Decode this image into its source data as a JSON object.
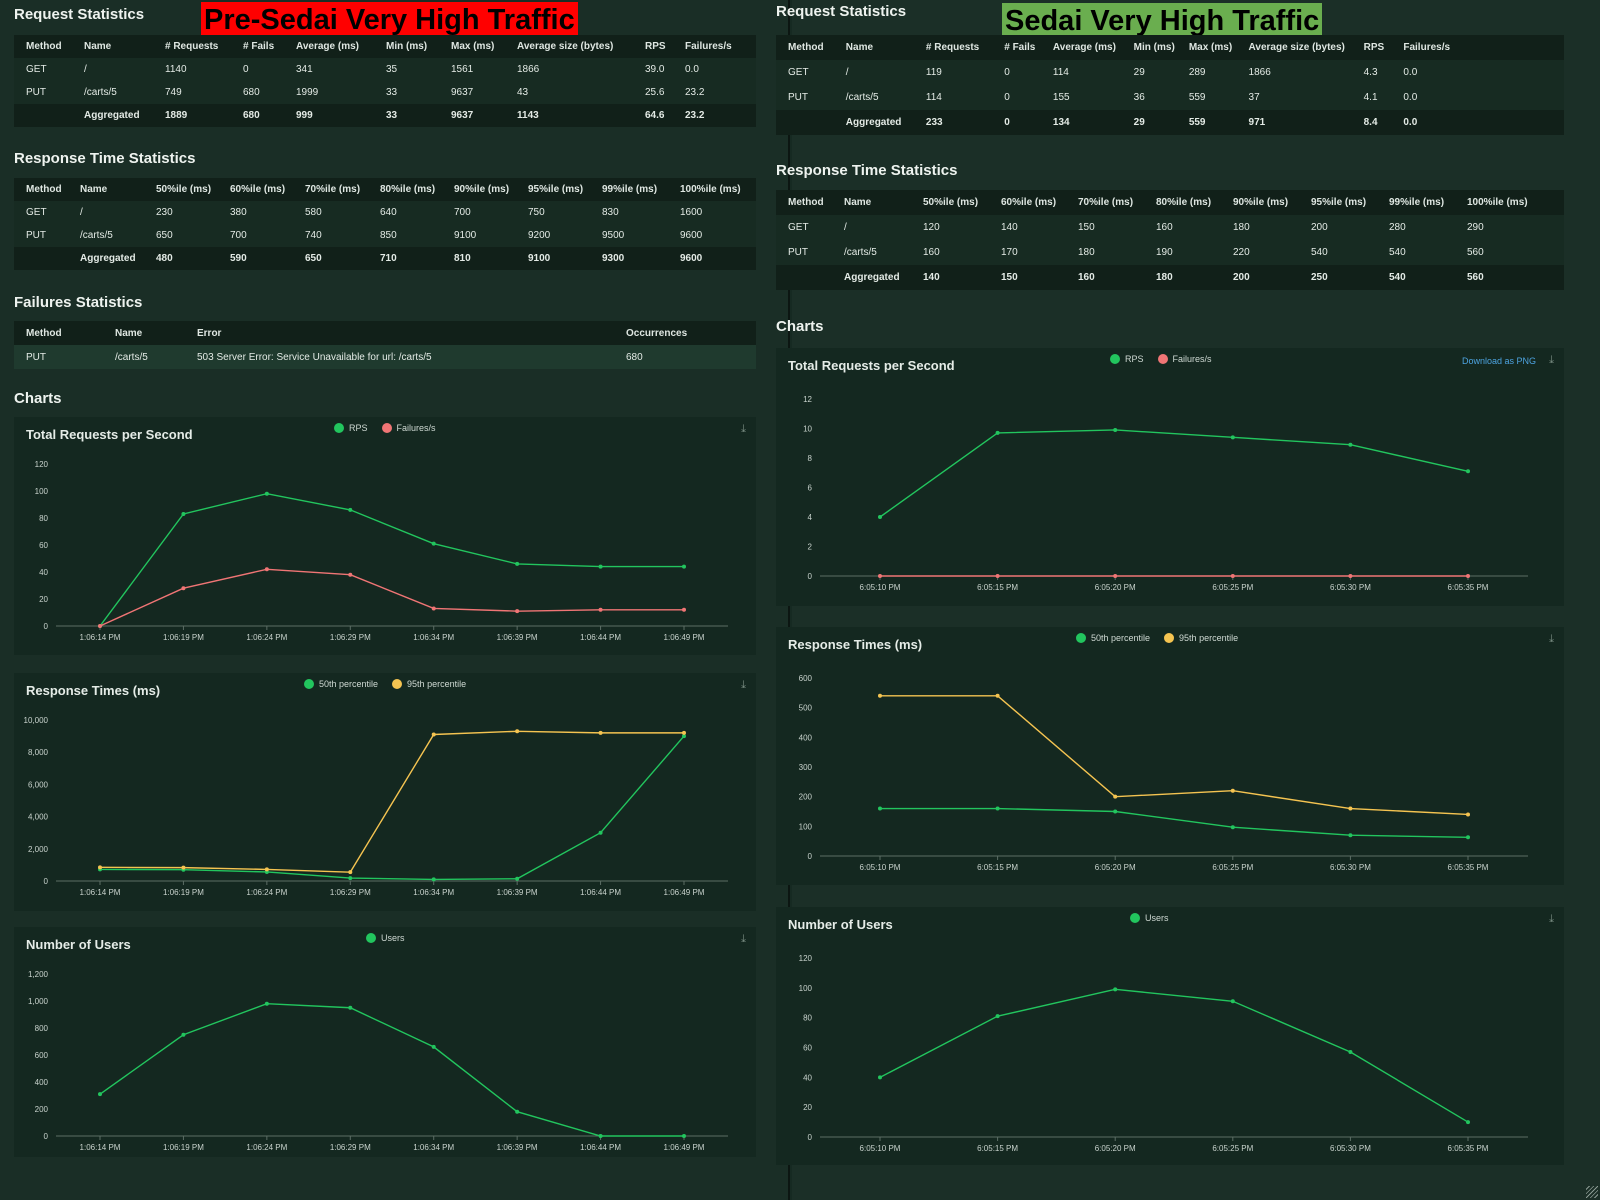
{
  "left": {
    "banner": "Pre-Sedai Very High Traffic",
    "banner_color": "#ff0000",
    "request_statistics": {
      "title": "Request Statistics",
      "headers": [
        "Method",
        "Name",
        "# Requests",
        "# Fails",
        "Average (ms)",
        "Min (ms)",
        "Max (ms)",
        "Average size (bytes)",
        "RPS",
        "Failures/s"
      ],
      "rows": [
        [
          "GET",
          "/",
          "1140",
          "0",
          "341",
          "35",
          "1561",
          "1866",
          "39.0",
          "0.0"
        ],
        [
          "PUT",
          "/carts/5",
          "749",
          "680",
          "1999",
          "33",
          "9637",
          "43",
          "25.6",
          "23.2"
        ],
        [
          "",
          "Aggregated",
          "1889",
          "680",
          "999",
          "33",
          "9637",
          "1143",
          "64.6",
          "23.2"
        ]
      ]
    },
    "response_time_statistics": {
      "title": "Response Time Statistics",
      "headers": [
        "Method",
        "Name",
        "50%ile (ms)",
        "60%ile (ms)",
        "70%ile (ms)",
        "80%ile (ms)",
        "90%ile (ms)",
        "95%ile (ms)",
        "99%ile (ms)",
        "100%ile (ms)"
      ],
      "rows": [
        [
          "GET",
          "/",
          "230",
          "380",
          "580",
          "640",
          "700",
          "750",
          "830",
          "1600"
        ],
        [
          "PUT",
          "/carts/5",
          "650",
          "700",
          "740",
          "850",
          "9100",
          "9200",
          "9500",
          "9600"
        ],
        [
          "",
          "Aggregated",
          "480",
          "590",
          "650",
          "710",
          "810",
          "9100",
          "9300",
          "9600"
        ]
      ]
    },
    "failures_statistics": {
      "title": "Failures Statistics",
      "headers": [
        "Method",
        "Name",
        "Error",
        "Occurrences"
      ],
      "rows": [
        [
          "PUT",
          "/carts/5",
          "503 Server Error: Service Unavailable for url: /carts/5",
          "680"
        ]
      ]
    },
    "charts_title": "Charts"
  },
  "right": {
    "banner": "Sedai Very High Traffic",
    "banner_color": "#6aae4f",
    "request_statistics": {
      "title": "Request Statistics",
      "headers": [
        "Method",
        "Name",
        "# Requests",
        "# Fails",
        "Average (ms)",
        "Min (ms)",
        "Max (ms)",
        "Average size (bytes)",
        "RPS",
        "Failures/s"
      ],
      "rows": [
        [
          "GET",
          "/",
          "119",
          "0",
          "114",
          "29",
          "289",
          "1866",
          "4.3",
          "0.0"
        ],
        [
          "PUT",
          "/carts/5",
          "114",
          "0",
          "155",
          "36",
          "559",
          "37",
          "4.1",
          "0.0"
        ],
        [
          "",
          "Aggregated",
          "233",
          "0",
          "134",
          "29",
          "559",
          "971",
          "8.4",
          "0.0"
        ]
      ]
    },
    "response_time_statistics": {
      "title": "Response Time Statistics",
      "headers": [
        "Method",
        "Name",
        "50%ile (ms)",
        "60%ile (ms)",
        "70%ile (ms)",
        "80%ile (ms)",
        "90%ile (ms)",
        "95%ile (ms)",
        "99%ile (ms)",
        "100%ile (ms)"
      ],
      "rows": [
        [
          "GET",
          "/",
          "120",
          "140",
          "150",
          "160",
          "180",
          "200",
          "280",
          "290"
        ],
        [
          "PUT",
          "/carts/5",
          "160",
          "170",
          "180",
          "190",
          "220",
          "540",
          "540",
          "560"
        ],
        [
          "",
          "Aggregated",
          "140",
          "150",
          "160",
          "180",
          "200",
          "250",
          "540",
          "560"
        ]
      ]
    },
    "charts_title": "Charts",
    "download_label": "Download as PNG"
  },
  "icons": {
    "download": "download-icon",
    "resize": "resize-grip-icon"
  },
  "colors": {
    "green": "#22c55e",
    "red": "#f07575",
    "yellow": "#f5c451"
  },
  "chart_data": [
    {
      "id": "left-rps",
      "type": "line",
      "title": "Total Requests per Second",
      "x": [
        "1:06:14 PM",
        "1:06:19 PM",
        "1:06:24 PM",
        "1:06:29 PM",
        "1:06:34 PM",
        "1:06:39 PM",
        "1:06:44 PM",
        "1:06:49 PM"
      ],
      "yticks": [
        0,
        20,
        40,
        60,
        80,
        100,
        120
      ],
      "ylim": [
        0,
        120
      ],
      "series": [
        {
          "name": "RPS",
          "color": "#22c55e",
          "values": [
            0,
            83,
            98,
            86,
            61,
            46,
            44,
            44
          ]
        },
        {
          "name": "Failures/s",
          "color": "#f07575",
          "values": [
            0,
            28,
            42,
            38,
            13,
            11,
            12,
            12
          ]
        }
      ]
    },
    {
      "id": "left-rt",
      "type": "line",
      "title": "Response Times (ms)",
      "x": [
        "1:06:14 PM",
        "1:06:19 PM",
        "1:06:24 PM",
        "1:06:29 PM",
        "1:06:34 PM",
        "1:06:39 PM",
        "1:06:44 PM",
        "1:06:49 PM"
      ],
      "yticks": [
        0,
        2000,
        4000,
        6000,
        8000,
        10000
      ],
      "ylim": [
        0,
        10000
      ],
      "series": [
        {
          "name": "50th percentile",
          "color": "#22c55e",
          "values": [
            720,
            700,
            560,
            180,
            100,
            140,
            3000,
            9000
          ]
        },
        {
          "name": "95th percentile",
          "color": "#f5c451",
          "values": [
            850,
            830,
            720,
            550,
            9100,
            9300,
            9200,
            9200
          ]
        }
      ]
    },
    {
      "id": "left-users",
      "type": "line",
      "title": "Number of Users",
      "x": [
        "1:06:14 PM",
        "1:06:19 PM",
        "1:06:24 PM",
        "1:06:29 PM",
        "1:06:34 PM",
        "1:06:39 PM",
        "1:06:44 PM",
        "1:06:49 PM"
      ],
      "yticks": [
        0,
        200,
        400,
        600,
        800,
        1000,
        1200
      ],
      "ylim": [
        0,
        1200
      ],
      "series": [
        {
          "name": "Users",
          "color": "#22c55e",
          "values": [
            310,
            750,
            980,
            950,
            660,
            180,
            0,
            0
          ]
        }
      ]
    },
    {
      "id": "right-rps",
      "type": "line",
      "title": "Total Requests per Second",
      "x": [
        "6:05:10 PM",
        "6:05:15 PM",
        "6:05:20 PM",
        "6:05:25 PM",
        "6:05:30 PM",
        "6:05:35 PM"
      ],
      "yticks": [
        0,
        2,
        4,
        6,
        8,
        10,
        12
      ],
      "ylim": [
        0,
        12
      ],
      "series": [
        {
          "name": "RPS",
          "color": "#22c55e",
          "values": [
            4.0,
            9.7,
            9.9,
            9.4,
            8.9,
            7.1
          ]
        },
        {
          "name": "Failures/s",
          "color": "#f07575",
          "values": [
            0,
            0,
            0,
            0,
            0,
            0
          ]
        }
      ]
    },
    {
      "id": "right-rt",
      "type": "line",
      "title": "Response Times (ms)",
      "x": [
        "6:05:10 PM",
        "6:05:15 PM",
        "6:05:20 PM",
        "6:05:25 PM",
        "6:05:30 PM",
        "6:05:35 PM"
      ],
      "yticks": [
        0,
        100,
        200,
        300,
        400,
        500,
        600
      ],
      "ylim": [
        0,
        600
      ],
      "series": [
        {
          "name": "50th percentile",
          "color": "#22c55e",
          "values": [
            160,
            160,
            150,
            97,
            70,
            63
          ]
        },
        {
          "name": "95th percentile",
          "color": "#f5c451",
          "values": [
            540,
            540,
            200,
            220,
            160,
            140
          ]
        }
      ]
    },
    {
      "id": "right-users",
      "type": "line",
      "title": "Number of Users",
      "x": [
        "6:05:10 PM",
        "6:05:15 PM",
        "6:05:20 PM",
        "6:05:25 PM",
        "6:05:30 PM",
        "6:05:35 PM"
      ],
      "yticks": [
        0,
        20,
        40,
        60,
        80,
        100,
        120
      ],
      "ylim": [
        0,
        120
      ],
      "series": [
        {
          "name": "Users",
          "color": "#22c55e",
          "values": [
            40,
            81,
            99,
            91,
            57,
            10
          ]
        }
      ]
    }
  ]
}
